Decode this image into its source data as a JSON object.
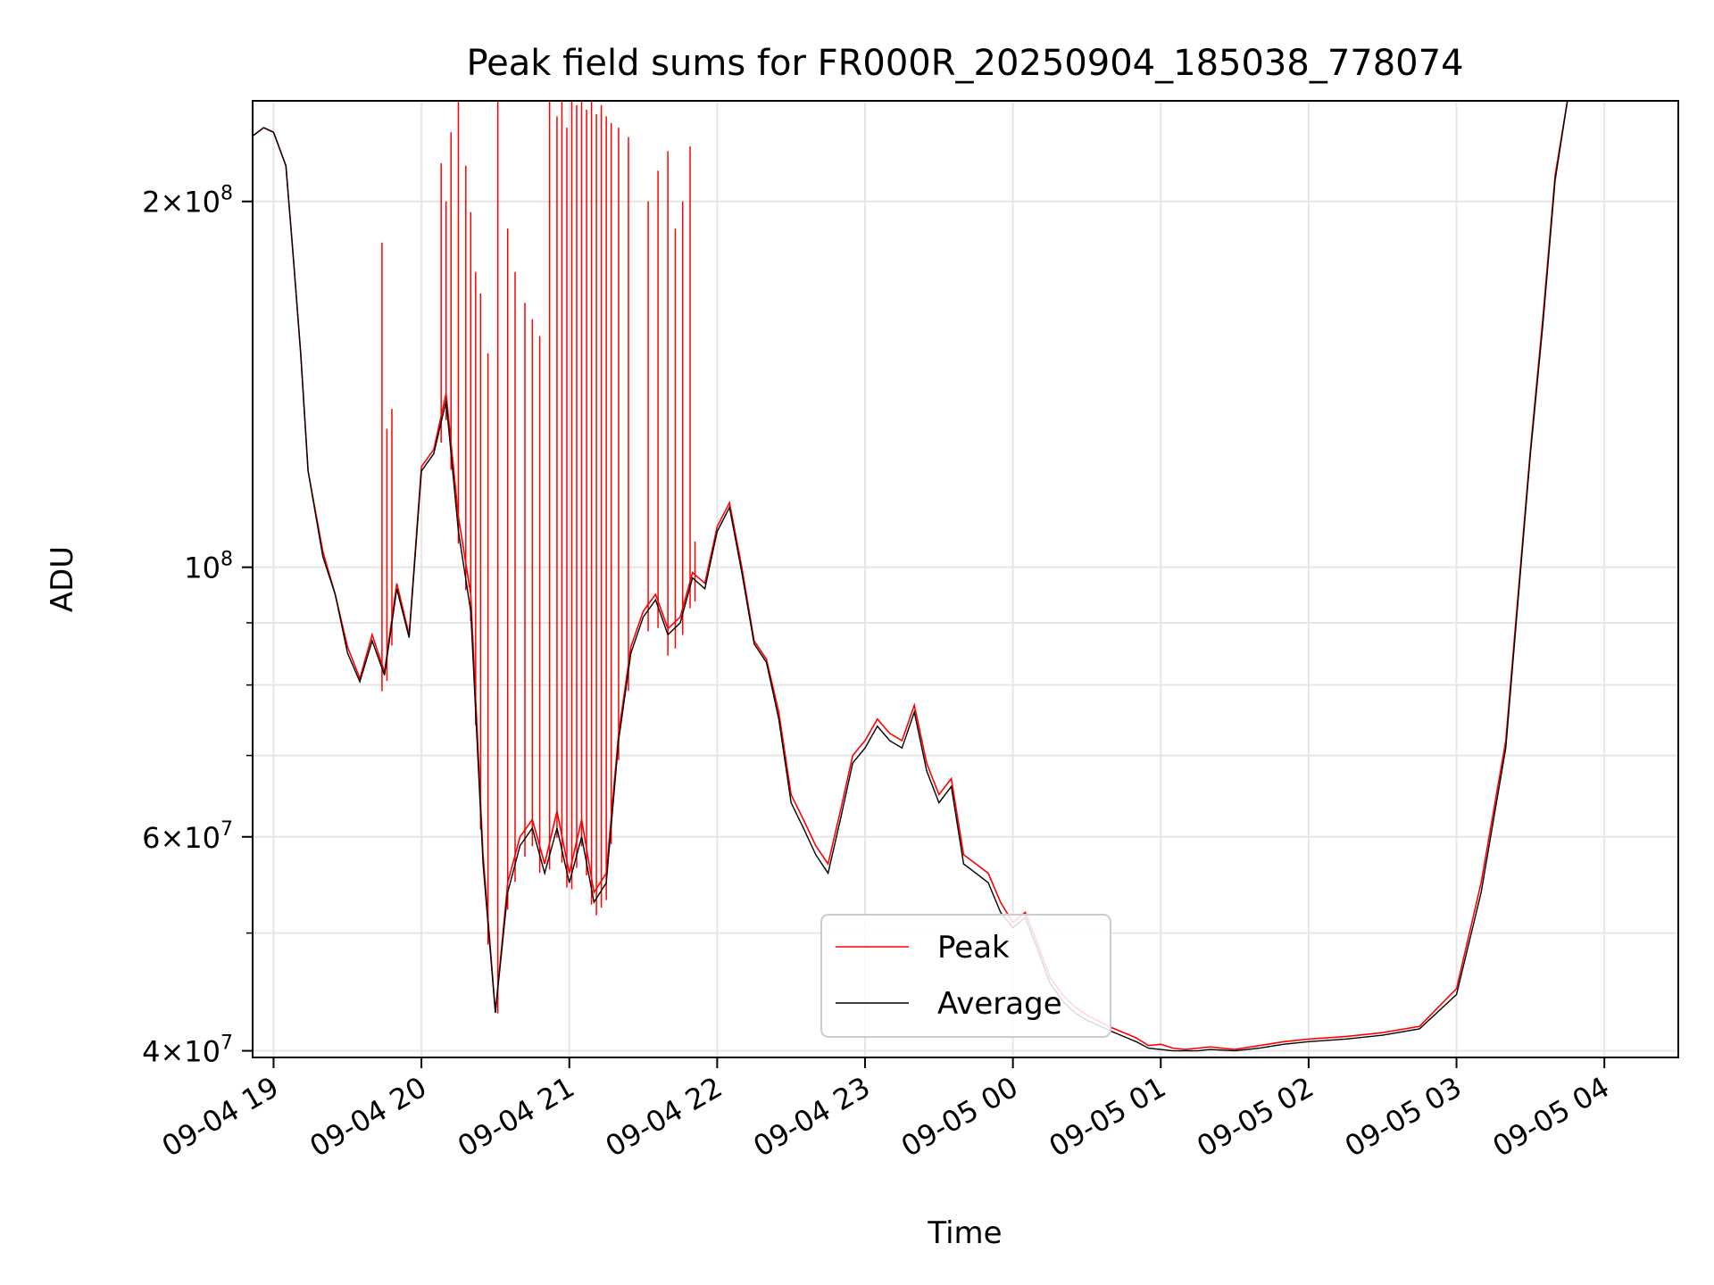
{
  "chart_data": {
    "type": "line",
    "title": "Peak field sums for FR000R_20250904_185038_778074",
    "xlabel": "Time",
    "ylabel": "ADU",
    "y_scale": "log",
    "ylim": [
      39500000,
      242000000
    ],
    "xlim": [
      "09-04 18:51:30",
      "09-05 04:30:00"
    ],
    "grid": true,
    "legend_position": "lower center",
    "x_ticks": [
      "09-04 19",
      "09-04 20",
      "09-04 21",
      "09-04 22",
      "09-04 23",
      "09-05 00",
      "09-05 01",
      "09-05 02",
      "09-05 03",
      "09-05 04"
    ],
    "y_major_ticks": [
      {
        "value": 40000000,
        "mantissa": "4",
        "exp": "7"
      },
      {
        "value": 60000000,
        "mantissa": "6",
        "exp": "7"
      },
      {
        "value": 100000000,
        "mantissa": "",
        "exp": "8"
      },
      {
        "value": 200000000,
        "mantissa": "2",
        "exp": "8"
      }
    ],
    "y_minor_ticks": [
      50000000,
      70000000,
      80000000,
      90000000
    ],
    "series": [
      {
        "name": "Peak",
        "color": "#ff0000",
        "x": [
          "09-04 18:51",
          "09-04 18:56",
          "09-04 19:00",
          "09-04 19:05",
          "09-04 19:08",
          "09-04 19:11",
          "09-04 19:14",
          "09-04 19:20",
          "09-04 19:25",
          "09-04 19:30",
          "09-04 19:35",
          "09-04 19:40",
          "09-04 19:45",
          "09-04 19:50",
          "09-04 19:55",
          "09-04 20:00",
          "09-04 20:05",
          "09-04 20:10",
          "09-04 20:15",
          "09-04 20:20",
          "09-04 20:25",
          "09-04 20:30",
          "09-04 20:35",
          "09-04 20:40",
          "09-04 20:45",
          "09-04 20:50",
          "09-04 20:55",
          "09-04 21:00",
          "09-04 21:05",
          "09-04 21:10",
          "09-04 21:15",
          "09-04 21:20",
          "09-04 21:25",
          "09-04 21:30",
          "09-04 21:35",
          "09-04 21:40",
          "09-04 21:45",
          "09-04 21:50",
          "09-04 21:55",
          "09-04 22:00",
          "09-04 22:05",
          "09-04 22:10",
          "09-04 22:15",
          "09-04 22:20",
          "09-04 22:25",
          "09-04 22:30",
          "09-04 22:35",
          "09-04 22:40",
          "09-04 22:45",
          "09-04 22:50",
          "09-04 22:55",
          "09-04 23:00",
          "09-04 23:05",
          "09-04 23:10",
          "09-04 23:15",
          "09-04 23:20",
          "09-04 23:25",
          "09-04 23:30",
          "09-04 23:35",
          "09-04 23:40",
          "09-04 23:45",
          "09-04 23:50",
          "09-04 23:55",
          "09-05 00:00",
          "09-05 00:05",
          "09-05 00:10",
          "09-05 00:15",
          "09-05 00:20",
          "09-05 00:25",
          "09-05 00:30",
          "09-05 00:40",
          "09-05 00:50",
          "09-05 00:55",
          "09-05 01:00",
          "09-05 01:05",
          "09-05 01:10",
          "09-05 01:15",
          "09-05 01:20",
          "09-05 01:30",
          "09-05 01:40",
          "09-05 01:50",
          "09-05 02:00",
          "09-05 02:15",
          "09-05 02:30",
          "09-05 02:45",
          "09-05 03:00",
          "09-05 03:10",
          "09-05 03:20",
          "09-05 03:25",
          "09-05 03:30",
          "09-05 03:35",
          "09-05 03:40",
          "09-05 03:45",
          "09-05 03:50",
          "09-05 03:55",
          "09-05 04:00",
          "09-05 04:05",
          "09-05 04:10",
          "09-05 04:15",
          "09-05 04:20",
          "09-05 04:30"
        ],
        "y": [
          226000000,
          230000000,
          228000000,
          214000000,
          180000000,
          150000000,
          120000000,
          103000000,
          95000000,
          86000000,
          81000000,
          88000000,
          82000000,
          97000000,
          88000000,
          121000000,
          125000000,
          139000000,
          110000000,
          95000000,
          58000000,
          43000000,
          55000000,
          60000000,
          62000000,
          57000000,
          63000000,
          56000000,
          62000000,
          54000000,
          56000000,
          73000000,
          86000000,
          92000000,
          95000000,
          89000000,
          91000000,
          99000000,
          97000000,
          108000000,
          113000000,
          100000000,
          87000000,
          84000000,
          76000000,
          65000000,
          62000000,
          59000000,
          57000000,
          63000000,
          70000000,
          72000000,
          75000000,
          73000000,
          72000000,
          77000000,
          69000000,
          65000000,
          67000000,
          58000000,
          57000000,
          56000000,
          53000000,
          51000000,
          52000000,
          49000000,
          46000000,
          44500000,
          43500000,
          42800000,
          41800000,
          41000000,
          40400000,
          40500000,
          40200000,
          40100000,
          40200000,
          40300000,
          40100000,
          40400000,
          40700000,
          40900000,
          41100000,
          41400000,
          41900000,
          45000000,
          55000000,
          72000000,
          95000000,
          125000000,
          160000000,
          210000000,
          242000000,
          242000000,
          242000000,
          242000000,
          242000000,
          242000000,
          242000000,
          242000000,
          242000000
        ],
        "spikes": [
          [
            "09-04 19:44",
            185000000
          ],
          [
            "09-04 19:46",
            130000000
          ],
          [
            "09-04 19:48",
            135000000
          ],
          [
            "09-04 20:08",
            215000000
          ],
          [
            "09-04 20:10",
            200000000
          ],
          [
            "09-04 20:12",
            228000000
          ],
          [
            "09-04 20:15",
            242000000
          ],
          [
            "09-04 20:18",
            214000000
          ],
          [
            "09-04 20:20",
            196000000
          ],
          [
            "09-04 20:22",
            175000000
          ],
          [
            "09-04 20:24",
            168000000
          ],
          [
            "09-04 20:27",
            150000000
          ],
          [
            "09-04 20:31",
            242000000
          ],
          [
            "09-04 20:35",
            190000000
          ],
          [
            "09-04 20:38",
            175000000
          ],
          [
            "09-04 20:42",
            165000000
          ],
          [
            "09-04 20:45",
            160000000
          ],
          [
            "09-04 20:48",
            155000000
          ],
          [
            "09-04 20:52",
            242000000
          ],
          [
            "09-04 20:55",
            235000000
          ],
          [
            "09-04 20:57",
            242000000
          ],
          [
            "09-04 20:59",
            230000000
          ],
          [
            "09-04 21:01",
            242000000
          ],
          [
            "09-04 21:03",
            240000000
          ],
          [
            "09-04 21:05",
            242000000
          ],
          [
            "09-04 21:07",
            238000000
          ],
          [
            "09-04 21:09",
            242000000
          ],
          [
            "09-04 21:11",
            236000000
          ],
          [
            "09-04 21:13",
            240000000
          ],
          [
            "09-04 21:15",
            235000000
          ],
          [
            "09-04 21:17",
            232000000
          ],
          [
            "09-04 21:20",
            230000000
          ],
          [
            "09-04 21:24",
            226000000
          ],
          [
            "09-04 21:32",
            200000000
          ],
          [
            "09-04 21:36",
            212000000
          ],
          [
            "09-04 21:40",
            220000000
          ],
          [
            "09-04 21:43",
            190000000
          ],
          [
            "09-04 21:46",
            200000000
          ],
          [
            "09-04 21:49",
            222000000
          ],
          [
            "09-04 21:51",
            105000000
          ]
        ]
      },
      {
        "name": "Average",
        "color": "#000000",
        "x": [
          "09-04 18:51",
          "09-04 18:56",
          "09-04 19:00",
          "09-04 19:05",
          "09-04 19:08",
          "09-04 19:11",
          "09-04 19:14",
          "09-04 19:20",
          "09-04 19:25",
          "09-04 19:30",
          "09-04 19:35",
          "09-04 19:40",
          "09-04 19:45",
          "09-04 19:50",
          "09-04 19:55",
          "09-04 20:00",
          "09-04 20:05",
          "09-04 20:10",
          "09-04 20:15",
          "09-04 20:20",
          "09-04 20:25",
          "09-04 20:30",
          "09-04 20:35",
          "09-04 20:40",
          "09-04 20:45",
          "09-04 20:50",
          "09-04 20:55",
          "09-04 21:00",
          "09-04 21:05",
          "09-04 21:10",
          "09-04 21:15",
          "09-04 21:20",
          "09-04 21:25",
          "09-04 21:30",
          "09-04 21:35",
          "09-04 21:40",
          "09-04 21:45",
          "09-04 21:50",
          "09-04 21:55",
          "09-04 22:00",
          "09-04 22:05",
          "09-04 22:10",
          "09-04 22:15",
          "09-04 22:20",
          "09-04 22:25",
          "09-04 22:30",
          "09-04 22:35",
          "09-04 22:40",
          "09-04 22:45",
          "09-04 22:50",
          "09-04 22:55",
          "09-04 23:00",
          "09-04 23:05",
          "09-04 23:10",
          "09-04 23:15",
          "09-04 23:20",
          "09-04 23:25",
          "09-04 23:30",
          "09-04 23:35",
          "09-04 23:40",
          "09-04 23:45",
          "09-04 23:50",
          "09-04 23:55",
          "09-05 00:00",
          "09-05 00:05",
          "09-05 00:10",
          "09-05 00:15",
          "09-05 00:20",
          "09-05 00:25",
          "09-05 00:30",
          "09-05 00:40",
          "09-05 00:50",
          "09-05 00:55",
          "09-05 01:00",
          "09-05 01:05",
          "09-05 01:10",
          "09-05 01:15",
          "09-05 01:20",
          "09-05 01:30",
          "09-05 01:40",
          "09-05 01:50",
          "09-05 02:00",
          "09-05 02:15",
          "09-05 02:30",
          "09-05 02:45",
          "09-05 03:00",
          "09-05 03:10",
          "09-05 03:20",
          "09-05 03:25",
          "09-05 03:30",
          "09-05 03:35",
          "09-05 03:40",
          "09-05 03:45",
          "09-05 03:50",
          "09-05 03:55",
          "09-05 04:00",
          "09-05 04:05",
          "09-05 04:10",
          "09-05 04:15",
          "09-05 04:20",
          "09-05 04:30"
        ],
        "y": [
          226000000,
          230000000,
          228000000,
          214000000,
          180000000,
          150000000,
          120000000,
          102000000,
          95000000,
          85000000,
          80500000,
          87000000,
          81500000,
          96000000,
          87500000,
          120000000,
          124000000,
          137000000,
          107000000,
          92000000,
          57000000,
          43000000,
          54000000,
          59000000,
          61000000,
          56000000,
          61000000,
          55000000,
          60000000,
          53000000,
          55000000,
          72000000,
          85000000,
          91000000,
          94000000,
          88000000,
          90000000,
          98000000,
          96000000,
          107000000,
          112000000,
          99000000,
          86500000,
          83500000,
          75000000,
          64000000,
          61000000,
          58000000,
          56000000,
          62000000,
          69000000,
          71000000,
          74000000,
          72000000,
          71000000,
          76000000,
          68000000,
          64000000,
          66000000,
          57000000,
          56000000,
          55000000,
          52000000,
          50500000,
          51500000,
          48500000,
          45500000,
          44000000,
          43000000,
          42400000,
          41500000,
          40700000,
          40200000,
          40100000,
          40000000,
          40000000,
          40000000,
          40100000,
          40000000,
          40200000,
          40500000,
          40700000,
          40900000,
          41200000,
          41700000,
          44500000,
          54000000,
          71000000,
          94000000,
          124000000,
          158000000,
          208000000,
          242000000,
          242000000,
          242000000,
          242000000,
          242000000,
          242000000,
          242000000,
          242000000,
          242000000
        ]
      }
    ]
  }
}
